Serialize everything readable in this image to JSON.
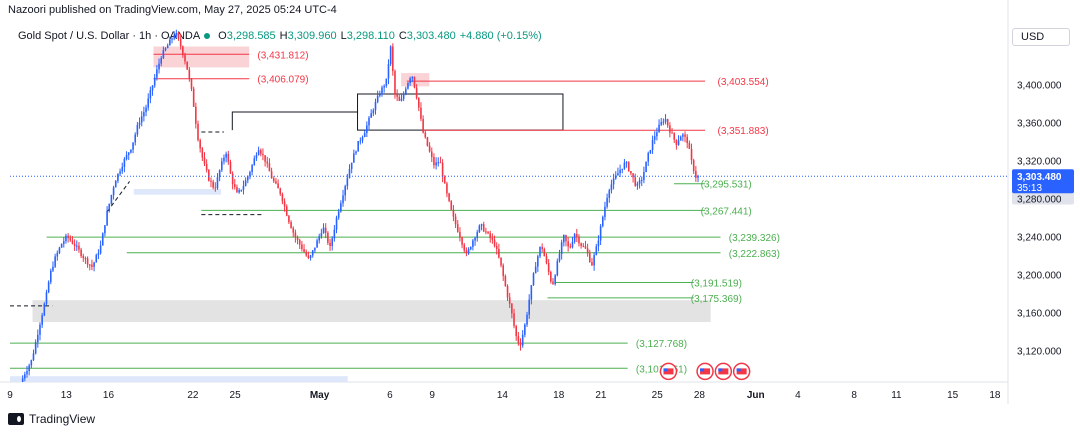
{
  "attribution": "Nazoori published on TradingView.com, May 27, 2025 05:24 UTC-4",
  "header": {
    "symbol": "Gold Spot / U.S. Dollar · 1h · OANDA",
    "open_label": "O",
    "open": "3,298.585",
    "high_label": "H",
    "high": "3,309.960",
    "low_label": "L",
    "low": "3,298.110",
    "close_label": "C",
    "close": "3,303.480",
    "change": "+4.880 (+0.15%)"
  },
  "currency": "USD",
  "footer": {
    "brand": "TradingView"
  },
  "colors": {
    "up": "#089981",
    "down": "#f23645",
    "candle_up": "#2962ff",
    "support": "#4caf50",
    "resistance": "#f23645",
    "box": "#131722",
    "zone_red": "#f8c8cc",
    "zone_grey": "#e0e0e0",
    "zone_blue": "#dbe6fb",
    "price_tag": "#2962ff"
  },
  "chart_data": {
    "type": "candlestick",
    "symbol": "Gold Spot / U.S. Dollar",
    "timeframe": "1h",
    "y_axis": {
      "ticks": [
        3120,
        3160,
        3200,
        3240,
        3280,
        3320,
        3360,
        3400
      ],
      "tick_labels": [
        "3,120.000",
        "3,160.000",
        "3,200.000",
        "3,240.000",
        "3,280.000",
        "3,320.000",
        "3,360.000",
        "3,400.000"
      ],
      "range": [
        3085,
        3455
      ]
    },
    "x_axis": {
      "ticks": [
        {
          "label": "9",
          "day": 0
        },
        {
          "label": "13",
          "day": 4
        },
        {
          "label": "16",
          "day": 7
        },
        {
          "label": "22",
          "day": 13
        },
        {
          "label": "25",
          "day": 16
        },
        {
          "label": "May",
          "day": 22
        },
        {
          "label": "6",
          "day": 27
        },
        {
          "label": "9",
          "day": 30
        },
        {
          "label": "14",
          "day": 35
        },
        {
          "label": "18",
          "day": 39
        },
        {
          "label": "21",
          "day": 42
        },
        {
          "label": "25",
          "day": 46
        },
        {
          "label": "28",
          "day": 49
        },
        {
          "label": "Jun",
          "day": 53
        },
        {
          "label": "4",
          "day": 56
        },
        {
          "label": "8",
          "day": 60
        },
        {
          "label": "11",
          "day": 63
        },
        {
          "label": "15",
          "day": 67
        },
        {
          "label": "18",
          "day": 70
        }
      ],
      "range": [
        0,
        70.5
      ]
    },
    "price_path": [
      [
        0.9,
        3085
      ],
      [
        1.2,
        3096
      ],
      [
        1.7,
        3110
      ],
      [
        2.0,
        3130
      ],
      [
        2.3,
        3150
      ],
      [
        2.7,
        3175
      ],
      [
        3.0,
        3200
      ],
      [
        3.3,
        3215
      ],
      [
        3.8,
        3232
      ],
      [
        4.2,
        3240
      ],
      [
        4.7,
        3232
      ],
      [
        5.2,
        3222
      ],
      [
        5.6,
        3214
      ],
      [
        6.0,
        3208
      ],
      [
        6.6,
        3230
      ],
      [
        7.0,
        3262
      ],
      [
        7.6,
        3298
      ],
      [
        8.2,
        3318
      ],
      [
        8.8,
        3335
      ],
      [
        9.3,
        3360
      ],
      [
        9.8,
        3375
      ],
      [
        10.4,
        3405
      ],
      [
        10.9,
        3430
      ],
      [
        11.4,
        3442
      ],
      [
        11.9,
        3455
      ],
      [
        12.3,
        3440
      ],
      [
        12.7,
        3420
      ],
      [
        13.1,
        3390
      ],
      [
        13.5,
        3345
      ],
      [
        13.9,
        3318
      ],
      [
        14.3,
        3300
      ],
      [
        14.7,
        3290
      ],
      [
        15.1,
        3312
      ],
      [
        15.5,
        3330
      ],
      [
        15.9,
        3300
      ],
      [
        16.3,
        3284
      ],
      [
        16.8,
        3295
      ],
      [
        17.3,
        3312
      ],
      [
        17.8,
        3334
      ],
      [
        18.3,
        3320
      ],
      [
        18.8,
        3300
      ],
      [
        19.4,
        3285
      ],
      [
        19.9,
        3260
      ],
      [
        20.4,
        3240
      ],
      [
        20.9,
        3228
      ],
      [
        21.4,
        3215
      ],
      [
        21.9,
        3232
      ],
      [
        22.4,
        3250
      ],
      [
        22.9,
        3228
      ],
      [
        23.4,
        3262
      ],
      [
        23.9,
        3290
      ],
      [
        24.4,
        3318
      ],
      [
        24.9,
        3338
      ],
      [
        25.4,
        3352
      ],
      [
        25.9,
        3372
      ],
      [
        26.4,
        3390
      ],
      [
        26.9,
        3404
      ],
      [
        27.2,
        3440
      ],
      [
        27.5,
        3390
      ],
      [
        27.9,
        3380
      ],
      [
        28.3,
        3398
      ],
      [
        28.7,
        3412
      ],
      [
        29.1,
        3385
      ],
      [
        29.5,
        3350
      ],
      [
        29.9,
        3332
      ],
      [
        30.3,
        3315
      ],
      [
        30.7,
        3320
      ],
      [
        31.1,
        3290
      ],
      [
        31.6,
        3262
      ],
      [
        32.1,
        3242
      ],
      [
        32.6,
        3220
      ],
      [
        33.1,
        3238
      ],
      [
        33.6,
        3252
      ],
      [
        34.1,
        3242
      ],
      [
        34.6,
        3232
      ],
      [
        35.0,
        3212
      ],
      [
        35.4,
        3185
      ],
      [
        35.8,
        3160
      ],
      [
        36.1,
        3136
      ],
      [
        36.4,
        3125
      ],
      [
        36.8,
        3150
      ],
      [
        37.1,
        3178
      ],
      [
        37.5,
        3210
      ],
      [
        37.9,
        3232
      ],
      [
        38.3,
        3210
      ],
      [
        38.7,
        3188
      ],
      [
        39.1,
        3215
      ],
      [
        39.5,
        3240
      ],
      [
        39.9,
        3226
      ],
      [
        40.3,
        3244
      ],
      [
        40.7,
        3232
      ],
      [
        41.1,
        3226
      ],
      [
        41.5,
        3210
      ],
      [
        41.9,
        3232
      ],
      [
        42.3,
        3262
      ],
      [
        42.7,
        3290
      ],
      [
        43.1,
        3300
      ],
      [
        43.5,
        3310
      ],
      [
        43.9,
        3318
      ],
      [
        44.3,
        3306
      ],
      [
        44.7,
        3292
      ],
      [
        45.1,
        3302
      ],
      [
        45.5,
        3325
      ],
      [
        45.9,
        3344
      ],
      [
        46.3,
        3356
      ],
      [
        46.7,
        3365
      ],
      [
        47.1,
        3350
      ],
      [
        47.5,
        3338
      ],
      [
        47.9,
        3348
      ],
      [
        48.3,
        3340
      ],
      [
        48.6,
        3318
      ],
      [
        48.9,
        3303
      ]
    ],
    "horizontal_levels": [
      {
        "price": 3431.812,
        "label": "(3,431.812)",
        "kind": "resistance"
      },
      {
        "price": 3406.079,
        "label": "(3,406.079)",
        "kind": "resistance"
      },
      {
        "price": 3403.554,
        "label": "(3,403.554)",
        "kind": "resistance"
      },
      {
        "price": 3351.883,
        "label": "(3,351.883)",
        "kind": "resistance"
      },
      {
        "price": 3295.531,
        "label": "(3,295.531)",
        "kind": "support"
      },
      {
        "price": 3267.441,
        "label": "(3,267.441)",
        "kind": "support"
      },
      {
        "price": 3239.326,
        "label": "(3,239.326)",
        "kind": "support"
      },
      {
        "price": 3222.863,
        "label": "(3,222.863)",
        "kind": "support"
      },
      {
        "price": 3191.519,
        "label": "(3,191.519)",
        "kind": "support"
      },
      {
        "price": 3175.369,
        "label": "(3,175.369)",
        "kind": "support"
      },
      {
        "price": 3127.768,
        "label": "(3,127.768)",
        "kind": "support"
      },
      {
        "price": 3101.261,
        "label": "(3,101.261)",
        "kind": "support"
      }
    ],
    "last_price": {
      "price": 3303.48,
      "label": "3,303.480",
      "countdown": "35:13"
    },
    "axis_badge": "3,280.000"
  }
}
